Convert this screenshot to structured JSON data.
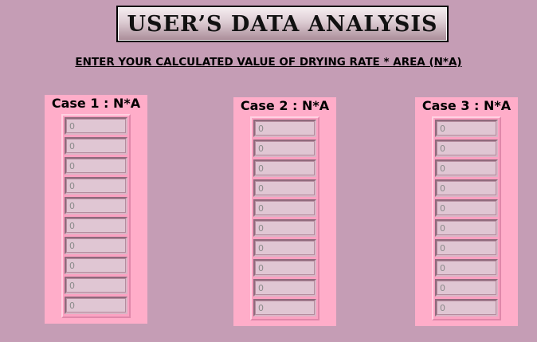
{
  "title": "USER’S  DATA  ANALYSIS",
  "subtitle": "ENTER YOUR CALCULATED VALUE OF DRYING RATE * AREA (N*A)",
  "cases": [
    {
      "label": "Case 1 : N*A",
      "values": [
        "0",
        "0",
        "0",
        "0",
        "0",
        "0",
        "0",
        "0",
        "0",
        "0"
      ]
    },
    {
      "label": "Case 2 : N*A",
      "values": [
        "0",
        "0",
        "0",
        "0",
        "0",
        "0",
        "0",
        "0",
        "0",
        "0"
      ]
    },
    {
      "label": "Case 3 : N*A",
      "values": [
        "0",
        "0",
        "0",
        "0",
        "0",
        "0",
        "0",
        "0",
        "0",
        "0"
      ]
    }
  ]
}
